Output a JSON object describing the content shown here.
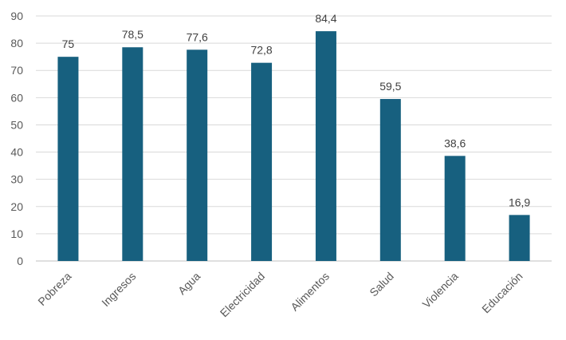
{
  "chart_data": {
    "type": "bar",
    "title": "",
    "xlabel": "",
    "ylabel": "",
    "categories": [
      "Pobreza",
      "Ingresos",
      "Agua",
      "Electricidad",
      "Alimentos",
      "Salud",
      "Violencia",
      "Educación"
    ],
    "values": [
      75,
      78.5,
      77.6,
      72.8,
      84.4,
      59.5,
      38.6,
      16.9
    ],
    "data_labels": [
      "75",
      "78,5",
      "77,6",
      "72,8",
      "84,4",
      "59,5",
      "38,6",
      "16,9"
    ],
    "ylim": [
      0,
      90
    ],
    "yticks": [
      0,
      10,
      20,
      30,
      40,
      50,
      60,
      70,
      80,
      90
    ],
    "grid": true,
    "legend": "none",
    "bar_color": "#17607f"
  }
}
